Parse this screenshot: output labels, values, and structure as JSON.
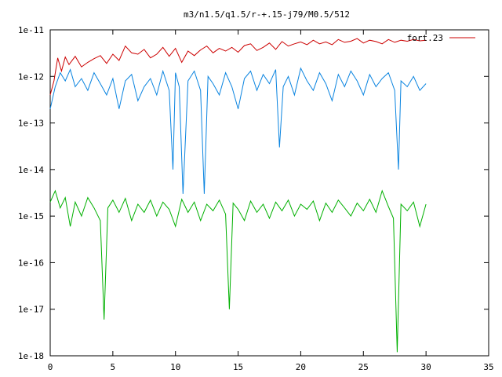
{
  "chart_data": {
    "type": "line",
    "title": "m3/n1.5/q1.5/r-+.15-j79/M0.5/512",
    "xlabel": "",
    "ylabel": "",
    "xlim": [
      0,
      35
    ],
    "ylim": [
      1e-18,
      1e-11
    ],
    "yscale": "log",
    "grid": false,
    "legend_position": "top-right",
    "x_ticks": [
      {
        "value": 0,
        "label": "0"
      },
      {
        "value": 5,
        "label": "5"
      },
      {
        "value": 10,
        "label": "10"
      },
      {
        "value": 15,
        "label": "15"
      },
      {
        "value": 20,
        "label": "20"
      },
      {
        "value": 25,
        "label": "25"
      },
      {
        "value": 30,
        "label": "30"
      },
      {
        "value": 35,
        "label": "35"
      }
    ],
    "y_ticks": [
      {
        "value": 1e-18,
        "label": "1e-18"
      },
      {
        "value": 1e-17,
        "label": "1e-17"
      },
      {
        "value": 1e-16,
        "label": "1e-16"
      },
      {
        "value": 1e-15,
        "label": "1e-15"
      },
      {
        "value": 1e-14,
        "label": "1e-14"
      },
      {
        "value": 1e-13,
        "label": "1e-13"
      },
      {
        "value": 1e-12,
        "label": "1e-12"
      },
      {
        "value": 1e-11,
        "label": "1e-11"
      }
    ],
    "series": [
      {
        "name": "fort.23",
        "color": "#cc0000",
        "x": [
          0.0,
          0.3,
          0.6,
          0.9,
          1.2,
          1.5,
          2.0,
          2.5,
          3.0,
          3.5,
          4.0,
          4.5,
          5.0,
          5.5,
          6.0,
          6.5,
          7.0,
          7.5,
          8.0,
          8.5,
          9.0,
          9.5,
          10.0,
          10.5,
          11.0,
          11.5,
          12.0,
          12.5,
          13.0,
          13.5,
          14.0,
          14.5,
          15.0,
          15.5,
          16.0,
          16.5,
          17.0,
          17.5,
          18.0,
          18.5,
          19.0,
          19.5,
          20.0,
          20.5,
          21.0,
          21.5,
          22.0,
          22.5,
          23.0,
          23.5,
          24.0,
          24.5,
          25.0,
          25.5,
          26.0,
          26.5,
          27.0,
          27.5,
          28.0,
          28.5,
          29.0,
          29.5,
          30.0
        ],
        "y": [
          4e-13,
          8e-13,
          2.5e-12,
          1.3e-12,
          2.6e-12,
          1.8e-12,
          2.7e-12,
          1.6e-12,
          2e-12,
          2.4e-12,
          2.8e-12,
          1.9e-12,
          3e-12,
          2.2e-12,
          4.5e-12,
          3.2e-12,
          3e-12,
          3.8e-12,
          2.5e-12,
          3e-12,
          4.2e-12,
          2.7e-12,
          4e-12,
          2e-12,
          3.5e-12,
          2.8e-12,
          3.7e-12,
          4.5e-12,
          3.2e-12,
          4e-12,
          3.5e-12,
          4.2e-12,
          3.3e-12,
          4.6e-12,
          5e-12,
          3.6e-12,
          4.2e-12,
          5.2e-12,
          3.8e-12,
          5.6e-12,
          4.5e-12,
          5e-12,
          5.5e-12,
          4.8e-12,
          6e-12,
          5e-12,
          5.5e-12,
          4.8e-12,
          6.2e-12,
          5.4e-12,
          5.7e-12,
          6.5e-12,
          5.2e-12,
          6e-12,
          5.6e-12,
          5e-12,
          6.2e-12,
          5.4e-12,
          6e-12,
          5.7e-12,
          6.2e-12,
          5.8e-12,
          6e-12
        ]
      },
      {
        "name": "",
        "color": "#0a84e0",
        "x": [
          0.0,
          0.4,
          0.8,
          1.2,
          1.6,
          2.0,
          2.5,
          3.0,
          3.5,
          4.0,
          4.5,
          5.0,
          5.5,
          6.0,
          6.5,
          7.0,
          7.5,
          8.0,
          8.5,
          9.0,
          9.5,
          9.8,
          10.0,
          10.3,
          10.6,
          11.0,
          11.5,
          12.0,
          12.3,
          12.6,
          13.0,
          13.5,
          14.0,
          14.5,
          15.0,
          15.5,
          16.0,
          16.5,
          17.0,
          17.5,
          18.0,
          18.3,
          18.6,
          19.0,
          19.5,
          20.0,
          20.5,
          21.0,
          21.5,
          22.0,
          22.5,
          23.0,
          23.5,
          24.0,
          24.5,
          25.0,
          25.5,
          26.0,
          26.5,
          27.0,
          27.5,
          27.8,
          28.0,
          28.5,
          29.0,
          29.5,
          30.0
        ],
        "y": [
          2e-13,
          6e-13,
          1.2e-12,
          8e-13,
          1.4e-12,
          6e-13,
          9e-13,
          5e-13,
          1.2e-12,
          7e-13,
          4e-13,
          9e-13,
          2e-13,
          8e-13,
          1.1e-12,
          3e-13,
          6e-13,
          9e-13,
          4e-13,
          1.3e-12,
          5e-13,
          1e-14,
          1.2e-12,
          6e-13,
          3e-15,
          8e-13,
          1.3e-12,
          5e-13,
          3e-15,
          1e-12,
          7e-13,
          4e-13,
          1.2e-12,
          6e-13,
          2e-13,
          9e-13,
          1.3e-12,
          5e-13,
          1.1e-12,
          7e-13,
          1.4e-12,
          3e-14,
          6e-13,
          1e-12,
          4e-13,
          1.5e-12,
          8e-13,
          5e-13,
          1.2e-12,
          7e-13,
          3e-13,
          1.1e-12,
          6e-13,
          1.3e-12,
          8e-13,
          4e-13,
          1.1e-12,
          6e-13,
          9e-13,
          1.2e-12,
          5e-13,
          1e-14,
          8e-13,
          6e-13,
          1e-12,
          5e-13,
          7e-13
        ]
      },
      {
        "name": "",
        "color": "#00b000",
        "x": [
          0.0,
          0.4,
          0.8,
          1.2,
          1.6,
          2.0,
          2.5,
          3.0,
          3.5,
          4.0,
          4.3,
          4.6,
          5.0,
          5.5,
          6.0,
          6.5,
          7.0,
          7.5,
          8.0,
          8.5,
          9.0,
          9.5,
          10.0,
          10.5,
          11.0,
          11.5,
          12.0,
          12.5,
          13.0,
          13.5,
          14.0,
          14.3,
          14.6,
          15.0,
          15.5,
          16.0,
          16.5,
          17.0,
          17.5,
          18.0,
          18.5,
          19.0,
          19.5,
          20.0,
          20.5,
          21.0,
          21.5,
          22.0,
          22.5,
          23.0,
          23.5,
          24.0,
          24.5,
          25.0,
          25.5,
          26.0,
          26.5,
          27.0,
          27.4,
          27.7,
          28.0,
          28.5,
          29.0,
          29.5,
          30.0
        ],
        "y": [
          2e-15,
          3.5e-15,
          1.5e-15,
          2.5e-15,
          6e-16,
          2e-15,
          1e-15,
          2.5e-15,
          1.5e-15,
          8e-16,
          6e-18,
          1.5e-15,
          2.2e-15,
          1.2e-15,
          2.4e-15,
          8e-16,
          1.8e-15,
          1.2e-15,
          2.2e-15,
          1e-15,
          2e-15,
          1.4e-15,
          6e-16,
          2.3e-15,
          1.2e-15,
          2e-15,
          8e-16,
          1.8e-15,
          1.3e-15,
          2.2e-15,
          1.1e-15,
          1e-17,
          1.9e-15,
          1.4e-15,
          8e-16,
          2.1e-15,
          1.2e-15,
          1.8e-15,
          9e-16,
          2e-15,
          1.3e-15,
          2.2e-15,
          1e-15,
          1.8e-15,
          1.4e-15,
          2.1e-15,
          8e-16,
          1.9e-15,
          1.2e-15,
          2.2e-15,
          1.5e-15,
          1e-15,
          1.9e-15,
          1.3e-15,
          2.3e-15,
          1.2e-15,
          3.5e-15,
          1.6e-15,
          9e-16,
          1.2e-18,
          1.8e-15,
          1.3e-15,
          2e-15,
          6e-16,
          1.8e-15
        ]
      }
    ]
  }
}
